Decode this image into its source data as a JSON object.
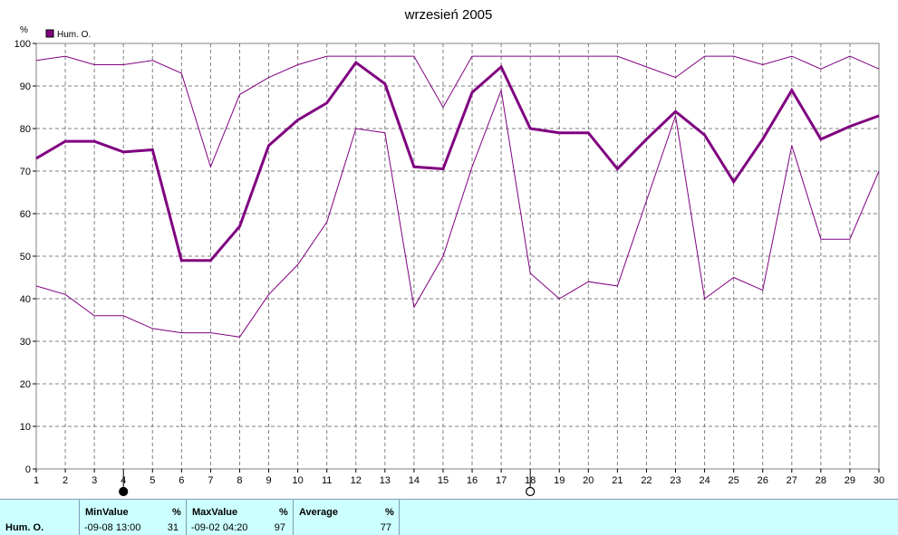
{
  "chart_data": {
    "type": "line",
    "title": "wrzesień 2005",
    "ylabel": "%",
    "ylim": [
      0,
      100
    ],
    "yticks": [
      0,
      10,
      20,
      30,
      40,
      50,
      60,
      70,
      80,
      90,
      100
    ],
    "x": [
      1,
      2,
      3,
      4,
      5,
      6,
      7,
      8,
      9,
      10,
      11,
      12,
      13,
      14,
      15,
      16,
      17,
      18,
      19,
      20,
      21,
      22,
      23,
      24,
      25,
      26,
      27,
      28,
      29,
      30
    ],
    "grid": true,
    "legend": "top-left",
    "legend_label": "Hum. O.",
    "series": [
      {
        "name": "Hum. O.",
        "role": "average",
        "color": "#800080",
        "values": [
          73,
          77,
          77,
          74.5,
          75,
          49,
          49,
          57,
          76,
          82,
          86,
          95.5,
          90.5,
          71,
          70.5,
          88.5,
          94.5,
          80,
          79,
          79,
          70.5,
          77.5,
          84,
          78.5,
          67.5,
          77.5,
          89,
          77.5,
          80.5,
          83
        ]
      },
      {
        "role": "max",
        "color": "#800080",
        "values": [
          96,
          97,
          95,
          95,
          96,
          93,
          71,
          88,
          92,
          95,
          97,
          97,
          97,
          97,
          85,
          97,
          97,
          97,
          97,
          97,
          97,
          94.5,
          92,
          97,
          97,
          95,
          97,
          94,
          97,
          94
        ]
      },
      {
        "role": "min",
        "color": "#800080",
        "values": [
          43,
          41,
          36,
          36,
          33,
          32,
          32,
          31,
          41,
          48,
          58,
          80,
          79,
          38,
          50,
          71,
          89,
          46,
          40,
          44,
          43,
          63,
          83,
          40,
          45,
          42,
          76,
          54,
          54,
          70
        ]
      }
    ],
    "markers": [
      {
        "x": 4,
        "type": "filled-circle"
      },
      {
        "x": 18,
        "type": "open-circle"
      }
    ]
  },
  "footer": {
    "series_name": "Hum. O.",
    "min": {
      "label": "MinValue",
      "unit": "%",
      "time": "-09-08  13:00",
      "value": "31"
    },
    "max": {
      "label": "MaxValue",
      "unit": "%",
      "time": "-09-02  04:20",
      "value": "97"
    },
    "avg": {
      "label": "Average",
      "unit": "%",
      "value": "77"
    }
  }
}
